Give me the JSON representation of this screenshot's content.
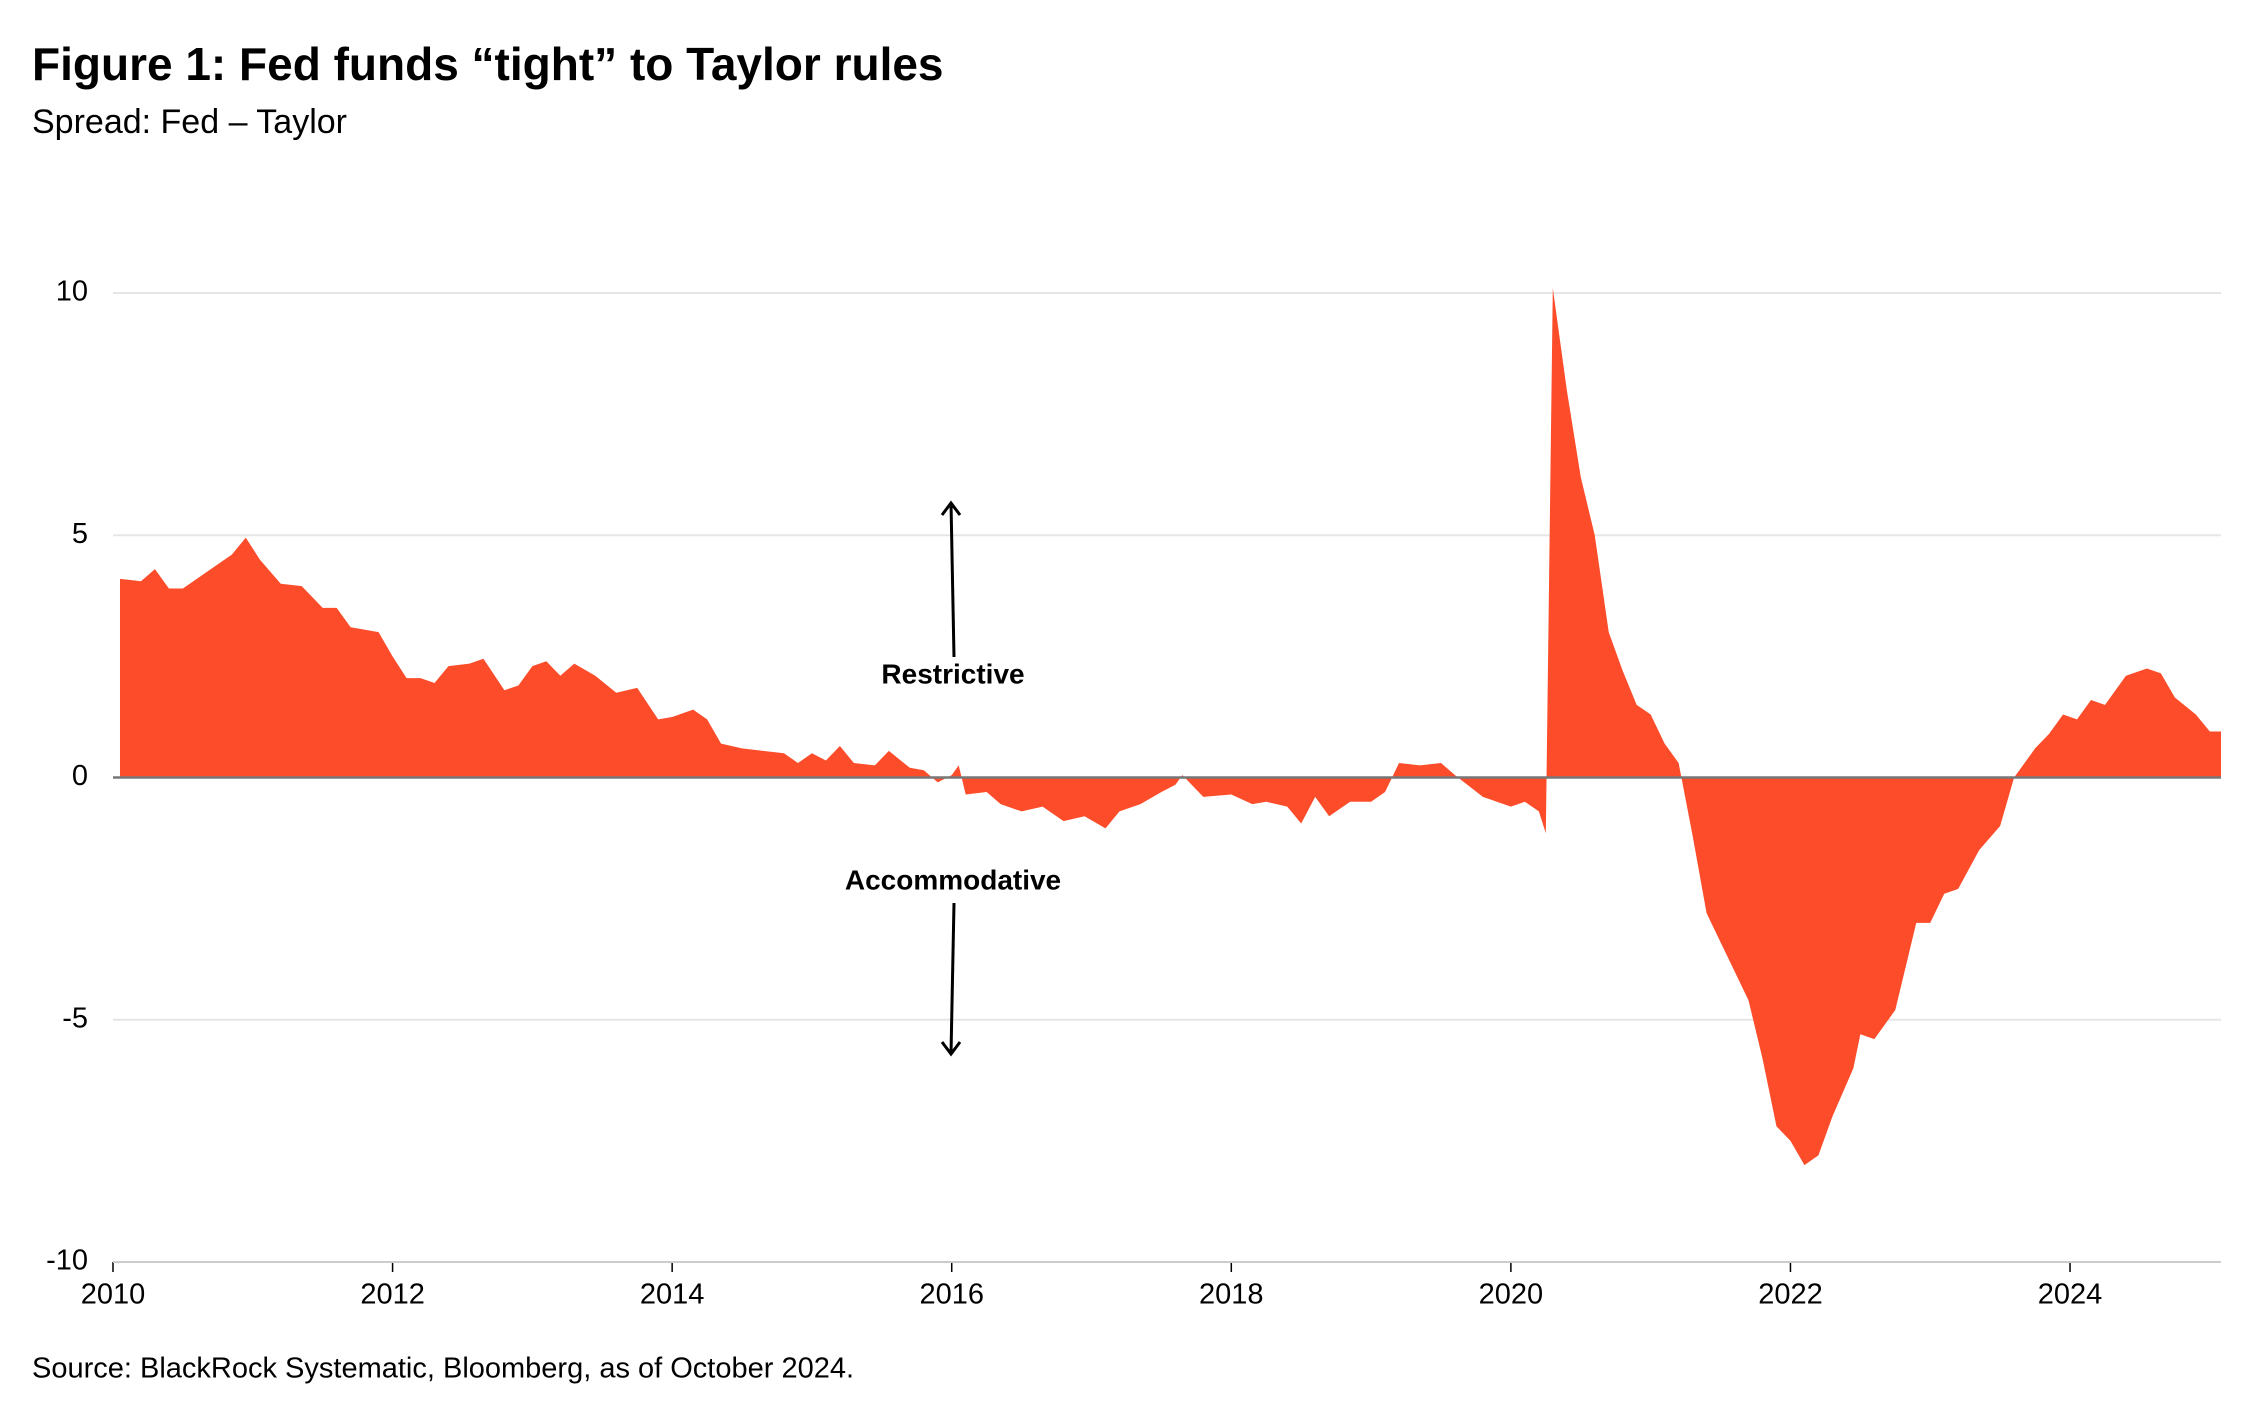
{
  "chart_data": {
    "type": "area",
    "title": "Figure 1: Fed funds “tight” to Taylor rules",
    "subtitle": "Spread: Fed – Taylor",
    "source": "Source: BlackRock Systematic, Bloomberg, as of October 2024.",
    "annotations": [
      "Restrictive",
      "Accommodative"
    ],
    "color": "#fc4c2a",
    "xlim": [
      2010,
      2025.08
    ],
    "xticks": [
      2010,
      2012,
      2014,
      2016,
      2018,
      2020,
      2022,
      2024
    ],
    "ylim": [
      -10,
      10
    ],
    "yticks": [
      -10,
      -5,
      0,
      5,
      10
    ],
    "grid": true,
    "x": [
      2010.05,
      2010.2,
      2010.3,
      2010.4,
      2010.5,
      2010.7,
      2010.85,
      2010.95,
      2011.05,
      2011.2,
      2011.35,
      2011.5,
      2011.6,
      2011.7,
      2011.9,
      2012.0,
      2012.1,
      2012.2,
      2012.3,
      2012.4,
      2012.55,
      2012.65,
      2012.8,
      2012.9,
      2013.0,
      2013.1,
      2013.2,
      2013.3,
      2013.45,
      2013.6,
      2013.75,
      2013.9,
      2014.0,
      2014.15,
      2014.25,
      2014.35,
      2014.5,
      2014.65,
      2014.8,
      2014.9,
      2015.0,
      2015.1,
      2015.2,
      2015.3,
      2015.45,
      2015.55,
      2015.7,
      2015.8,
      2015.9,
      2016.0,
      2016.05,
      2016.1,
      2016.25,
      2016.35,
      2016.5,
      2016.65,
      2016.8,
      2016.95,
      2017.1,
      2017.2,
      2017.35,
      2017.5,
      2017.6,
      2017.65,
      2017.8,
      2018.0,
      2018.15,
      2018.25,
      2018.4,
      2018.5,
      2018.6,
      2018.7,
      2018.85,
      2019.0,
      2019.1,
      2019.2,
      2019.35,
      2019.5,
      2019.6,
      2019.8,
      2020.0,
      2020.1,
      2020.2,
      2020.25,
      2020.3,
      2020.4,
      2020.5,
      2020.6,
      2020.7,
      2020.8,
      2020.9,
      2021.0,
      2021.1,
      2021.2,
      2021.3,
      2021.4,
      2021.5,
      2021.6,
      2021.7,
      2021.8,
      2021.9,
      2022.0,
      2022.1,
      2022.2,
      2022.3,
      2022.45,
      2022.5,
      2022.6,
      2022.75,
      2022.9,
      2023.0,
      2023.1,
      2023.2,
      2023.35,
      2023.5,
      2023.6,
      2023.75,
      2023.85,
      2023.95,
      2024.05,
      2024.15,
      2024.25,
      2024.4,
      2024.55,
      2024.65,
      2024.75,
      2024.9,
      2025.0,
      2025.08
    ],
    "values": [
      4.1,
      4.05,
      4.3,
      3.9,
      3.9,
      4.3,
      4.6,
      4.95,
      4.5,
      4.0,
      3.95,
      3.5,
      3.5,
      3.1,
      3.0,
      2.5,
      2.05,
      2.05,
      1.95,
      2.3,
      2.35,
      2.45,
      1.8,
      1.9,
      2.3,
      2.4,
      2.1,
      2.35,
      2.1,
      1.75,
      1.85,
      1.2,
      1.25,
      1.4,
      1.2,
      0.7,
      0.6,
      0.55,
      0.5,
      0.3,
      0.5,
      0.35,
      0.65,
      0.3,
      0.25,
      0.55,
      0.2,
      0.15,
      -0.1,
      0.05,
      0.25,
      -0.35,
      -0.3,
      -0.55,
      -0.7,
      -0.6,
      -0.9,
      -0.8,
      -1.05,
      -0.7,
      -0.55,
      -0.3,
      -0.15,
      0.05,
      -0.4,
      -0.35,
      -0.55,
      -0.5,
      -0.6,
      -0.95,
      -0.4,
      -0.8,
      -0.5,
      -0.5,
      -0.3,
      0.3,
      0.25,
      0.3,
      0.05,
      -0.4,
      -0.6,
      -0.5,
      -0.7,
      -1.15,
      10.1,
      8.0,
      6.2,
      5.0,
      3.0,
      2.2,
      1.5,
      1.3,
      0.7,
      0.3,
      -1.2,
      -2.8,
      -3.4,
      -4.0,
      -4.6,
      -5.8,
      -7.2,
      -7.5,
      -8.0,
      -7.8,
      -7.0,
      -6.0,
      -5.3,
      -5.4,
      -4.8,
      -3.0,
      -3.0,
      -2.4,
      -2.3,
      -1.5,
      -1.0,
      0.0,
      0.6,
      0.9,
      1.3,
      1.2,
      1.6,
      1.5,
      2.1,
      2.25,
      2.15,
      1.65,
      1.3,
      0.95,
      0.95
    ]
  }
}
